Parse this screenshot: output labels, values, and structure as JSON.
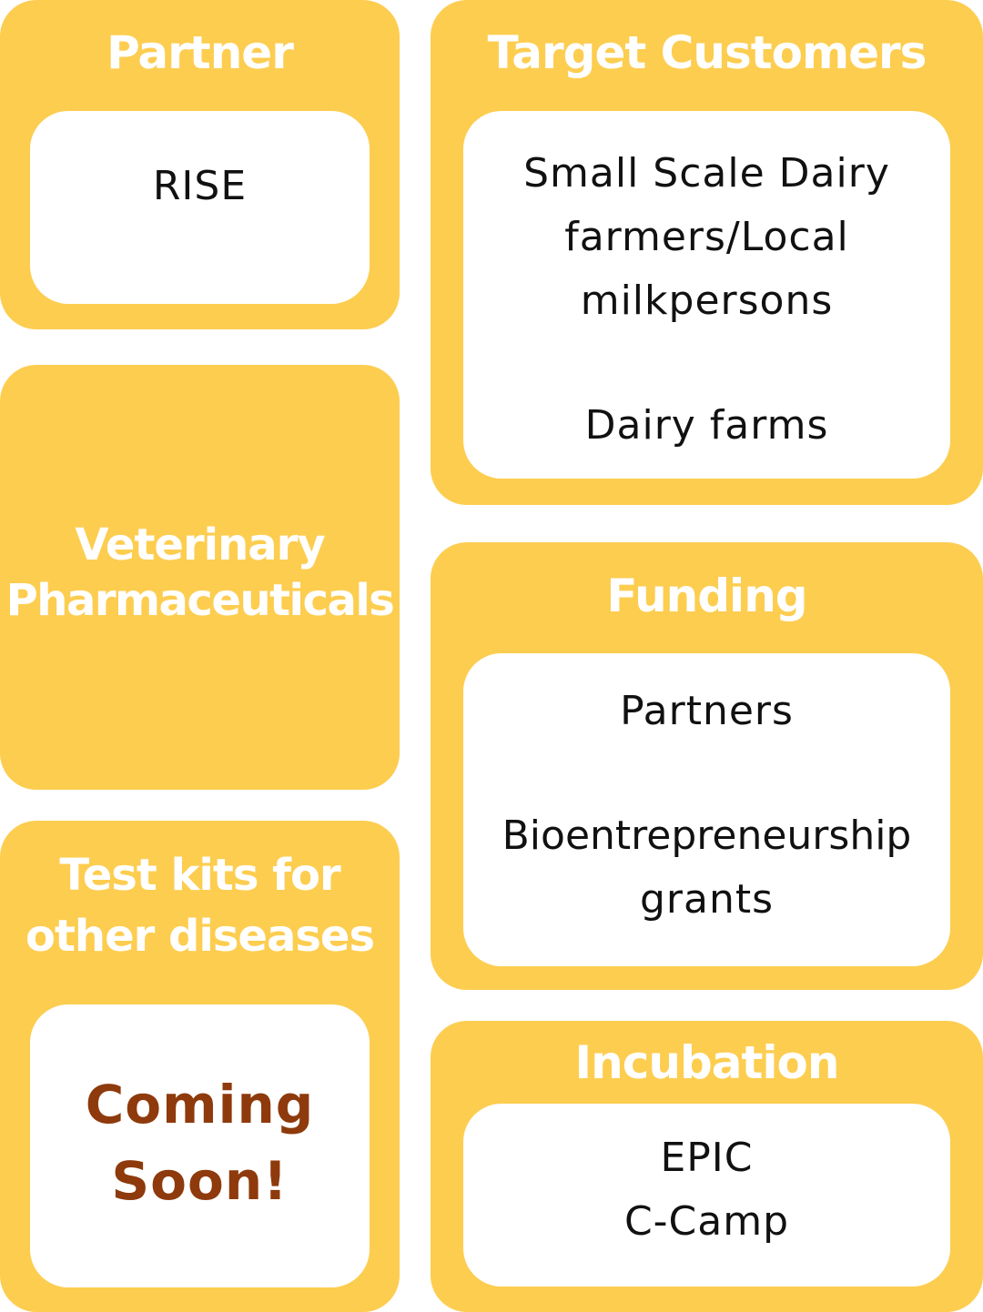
{
  "partner": {
    "title": "Partner",
    "items": [
      "RISE"
    ]
  },
  "target_customers": {
    "title": "Target Customers",
    "items": [
      "Small Scale Dairy",
      "farmers/Local",
      "milkpersons",
      "Dairy farms"
    ]
  },
  "veterinary": {
    "title_line1": "Veterinary",
    "title_line2": "Pharmaceuticals"
  },
  "funding": {
    "title": "Funding",
    "items": [
      "Partners",
      "Bioentrepreneurship",
      "grants"
    ]
  },
  "test_kits": {
    "title_line1": "Test kits for",
    "title_line2": "other diseases",
    "status_line1": "Coming",
    "status_line2": "Soon!"
  },
  "incubation": {
    "title": "Incubation",
    "items": [
      "EPIC",
      "C-Camp"
    ]
  },
  "colors": {
    "card_background": "#FDCD50",
    "inner_background": "#FFFFFF",
    "title_text": "#FFFFFF",
    "body_text": "#111111",
    "coming_soon_text": "#8E3A0C"
  }
}
